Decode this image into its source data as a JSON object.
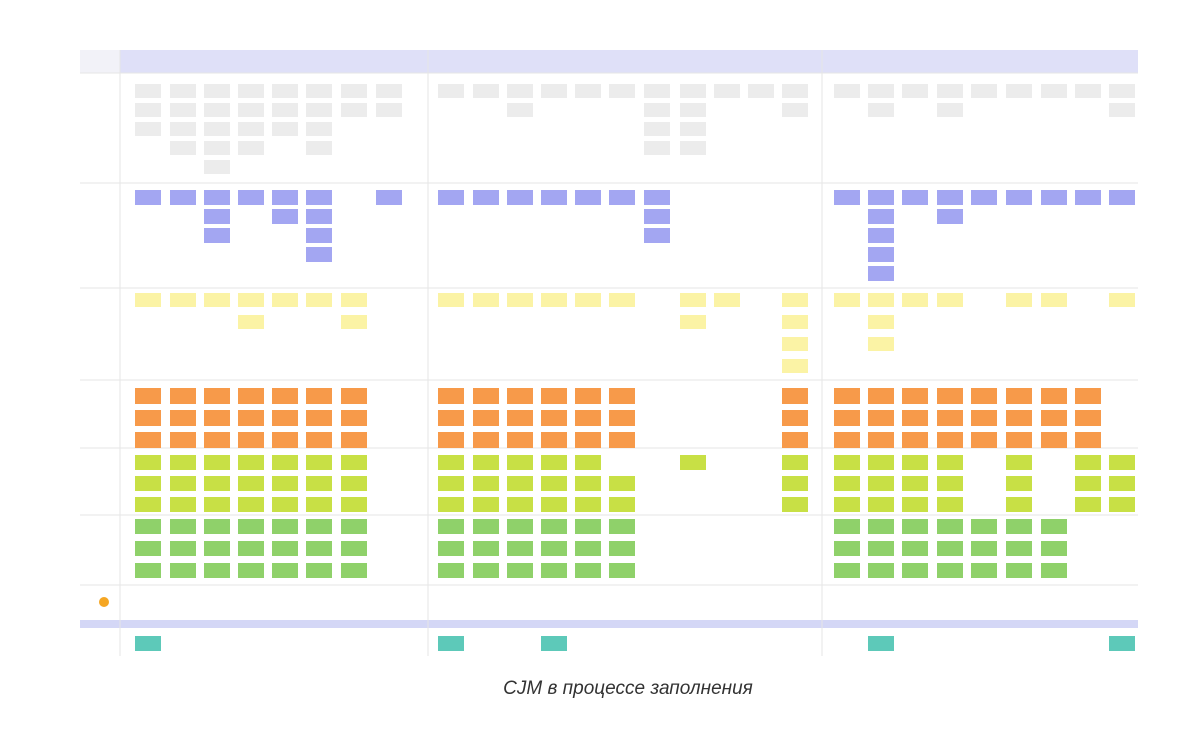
{
  "caption": "CJM в процессе заполнения"
}
